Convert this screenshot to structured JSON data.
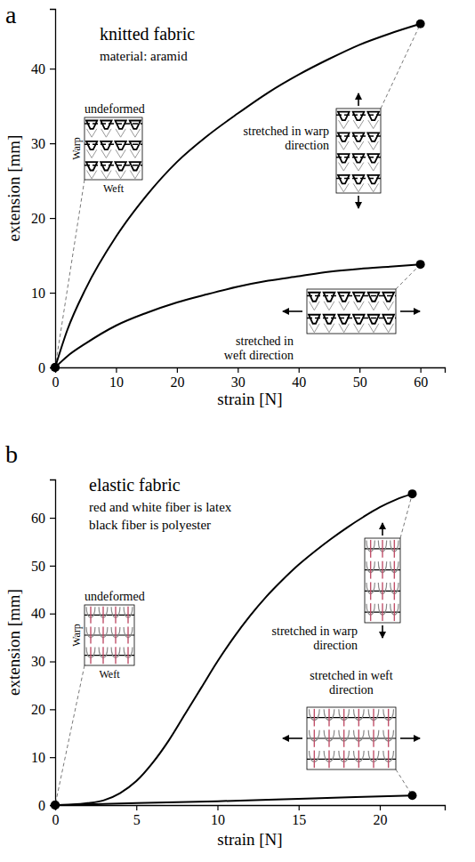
{
  "chart_data": [
    {
      "type": "line",
      "panel": "a",
      "title": "knitted fabric",
      "subtitle": [
        "material: aramid"
      ],
      "x_label": "strain [N]",
      "y_label": "extension [mm]",
      "xlim": [
        0,
        64
      ],
      "xticks": [
        0,
        10,
        20,
        30,
        40,
        50,
        60
      ],
      "ylim": [
        0,
        48
      ],
      "yticks": [
        0,
        10,
        20,
        30,
        40
      ],
      "annotations": [
        "undeformed",
        "Warp",
        "Weft"
      ],
      "marker": "endpoints",
      "series": [
        {
          "name": "stretched in warp direction",
          "color": "#000000",
          "x": [
            0,
            2,
            5,
            10,
            15,
            20,
            25,
            30,
            35,
            40,
            45,
            50,
            55,
            60
          ],
          "values": [
            0,
            5,
            10.5,
            17.5,
            23,
            27.5,
            31,
            34,
            36.8,
            39.2,
            41.3,
            43.2,
            44.7,
            46
          ]
        },
        {
          "name": "stretched in weft direction",
          "color": "#000000",
          "x": [
            0,
            2,
            5,
            10,
            15,
            20,
            25,
            30,
            35,
            40,
            45,
            50,
            55,
            60
          ],
          "values": [
            0,
            1.5,
            3.2,
            5.6,
            7.3,
            8.7,
            9.8,
            10.8,
            11.6,
            12.2,
            12.8,
            13.2,
            13.5,
            13.8
          ]
        }
      ]
    },
    {
      "type": "line",
      "panel": "b",
      "title": "elastic fabric",
      "subtitle": [
        "red and white fiber is latex",
        "black fiber is polyester"
      ],
      "x_label": "strain [N]",
      "y_label": "extension [mm]",
      "xlim": [
        0,
        24
      ],
      "xticks": [
        0,
        5,
        10,
        15,
        20
      ],
      "ylim": [
        0,
        68
      ],
      "yticks": [
        0,
        10,
        20,
        30,
        40,
        50,
        60
      ],
      "annotations": [
        "undeformed",
        "Warp",
        "Weft"
      ],
      "marker": "endpoints",
      "series": [
        {
          "name": "stretched in warp direction",
          "color": "#000000",
          "x": [
            0,
            1,
            2,
            3,
            4,
            5,
            6,
            7,
            8,
            9,
            10,
            11,
            12,
            13,
            14,
            15,
            16,
            17,
            18,
            19,
            20,
            21,
            22
          ],
          "values": [
            0,
            0.1,
            0.4,
            1,
            2.5,
            5,
            8.8,
            13.5,
            19,
            24.5,
            30,
            35,
            39.5,
            43.5,
            47,
            50.2,
            53,
            55.6,
            58,
            60.2,
            62.2,
            63.8,
            65
          ]
        },
        {
          "name": "stretched in weft direction",
          "color": "#000000",
          "x": [
            0,
            5,
            10,
            15,
            22
          ],
          "values": [
            0,
            0.4,
            0.8,
            1.3,
            2
          ]
        }
      ]
    }
  ]
}
